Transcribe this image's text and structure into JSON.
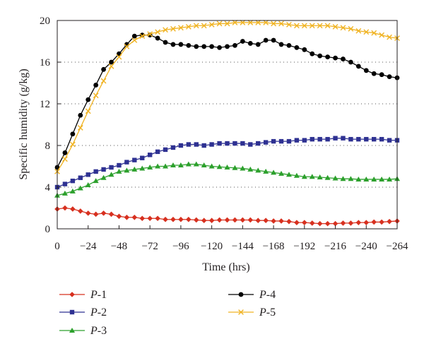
{
  "chart_data": {
    "type": "line",
    "title": "",
    "xlabel": "Time (hrs)",
    "ylabel": "Specific humidity (g/kg)",
    "xlim": [
      0,
      264
    ],
    "ylim": [
      0,
      20
    ],
    "x_ticks": [
      0,
      24,
      48,
      72,
      96,
      120,
      144,
      168,
      192,
      216,
      240,
      264
    ],
    "x_tick_labels": [
      "0",
      "−24",
      "−48",
      "−72",
      "−96",
      "−120",
      "−144",
      "−168",
      "−192",
      "−216",
      "−240",
      "−264"
    ],
    "y_ticks": [
      0,
      4,
      8,
      12,
      16,
      20
    ],
    "y_tick_labels": [
      "0",
      "4",
      "8",
      "12",
      "16",
      "20"
    ],
    "grid": "horizontal dotted",
    "legend_position": "bottom",
    "x": [
      0,
      6,
      12,
      18,
      24,
      30,
      36,
      42,
      48,
      54,
      60,
      66,
      72,
      78,
      84,
      90,
      96,
      102,
      108,
      114,
      120,
      126,
      132,
      138,
      144,
      150,
      156,
      162,
      168,
      174,
      180,
      186,
      192,
      198,
      204,
      210,
      216,
      222,
      228,
      234,
      240,
      246,
      252,
      258,
      264
    ],
    "series": [
      {
        "name_prefix": "P",
        "name_suffix": "-1",
        "color": "#d7301f",
        "marker": "diamond",
        "values": [
          1.9,
          2.0,
          1.9,
          1.7,
          1.5,
          1.4,
          1.5,
          1.4,
          1.2,
          1.1,
          1.1,
          1.0,
          1.0,
          1.0,
          0.9,
          0.9,
          0.9,
          0.9,
          0.85,
          0.8,
          0.8,
          0.85,
          0.85,
          0.85,
          0.85,
          0.85,
          0.8,
          0.8,
          0.75,
          0.75,
          0.7,
          0.6,
          0.6,
          0.55,
          0.5,
          0.5,
          0.5,
          0.55,
          0.55,
          0.6,
          0.6,
          0.65,
          0.65,
          0.7,
          0.75
        ]
      },
      {
        "name_prefix": "P",
        "name_suffix": "-2",
        "color": "#2e3192",
        "marker": "square",
        "values": [
          4.0,
          4.3,
          4.6,
          4.9,
          5.2,
          5.5,
          5.7,
          5.9,
          6.1,
          6.4,
          6.6,
          6.8,
          7.1,
          7.4,
          7.6,
          7.8,
          8.0,
          8.1,
          8.1,
          8.0,
          8.1,
          8.2,
          8.2,
          8.2,
          8.2,
          8.1,
          8.2,
          8.3,
          8.4,
          8.4,
          8.4,
          8.5,
          8.5,
          8.6,
          8.6,
          8.6,
          8.7,
          8.7,
          8.6,
          8.6,
          8.6,
          8.6,
          8.6,
          8.5,
          8.5
        ]
      },
      {
        "name_prefix": "P",
        "name_suffix": "-3",
        "color": "#2ca02c",
        "marker": "triangle",
        "values": [
          3.2,
          3.4,
          3.6,
          3.9,
          4.2,
          4.6,
          4.9,
          5.2,
          5.5,
          5.6,
          5.7,
          5.8,
          5.9,
          6.0,
          6.0,
          6.1,
          6.1,
          6.2,
          6.2,
          6.1,
          6.0,
          5.95,
          5.9,
          5.85,
          5.8,
          5.7,
          5.6,
          5.5,
          5.4,
          5.3,
          5.2,
          5.1,
          5.0,
          5.0,
          4.95,
          4.9,
          4.85,
          4.8,
          4.8,
          4.75,
          4.75,
          4.75,
          4.75,
          4.75,
          4.8
        ]
      },
      {
        "name_prefix": "P",
        "name_suffix": "-4",
        "color": "#000000",
        "marker": "circle",
        "values": [
          5.9,
          7.3,
          9.1,
          10.9,
          12.4,
          13.8,
          15.3,
          16.0,
          16.8,
          17.7,
          18.5,
          18.6,
          18.6,
          18.3,
          17.9,
          17.7,
          17.7,
          17.6,
          17.5,
          17.5,
          17.5,
          17.4,
          17.5,
          17.6,
          18.0,
          17.8,
          17.7,
          18.1,
          18.1,
          17.7,
          17.6,
          17.4,
          17.2,
          16.8,
          16.6,
          16.5,
          16.4,
          16.3,
          16.0,
          15.6,
          15.2,
          14.9,
          14.8,
          14.6,
          14.5
        ]
      },
      {
        "name_prefix": "P",
        "name_suffix": "-5",
        "color": "#f0b323",
        "marker": "cross",
        "values": [
          5.5,
          6.7,
          8.1,
          9.7,
          11.3,
          12.8,
          14.2,
          15.6,
          16.5,
          17.5,
          18.1,
          18.5,
          18.7,
          18.9,
          19.1,
          19.2,
          19.3,
          19.4,
          19.5,
          19.5,
          19.6,
          19.7,
          19.7,
          19.8,
          19.8,
          19.8,
          19.8,
          19.8,
          19.7,
          19.7,
          19.6,
          19.5,
          19.5,
          19.5,
          19.5,
          19.5,
          19.4,
          19.3,
          19.2,
          19.0,
          18.9,
          18.8,
          18.6,
          18.4,
          18.3
        ]
      }
    ]
  }
}
